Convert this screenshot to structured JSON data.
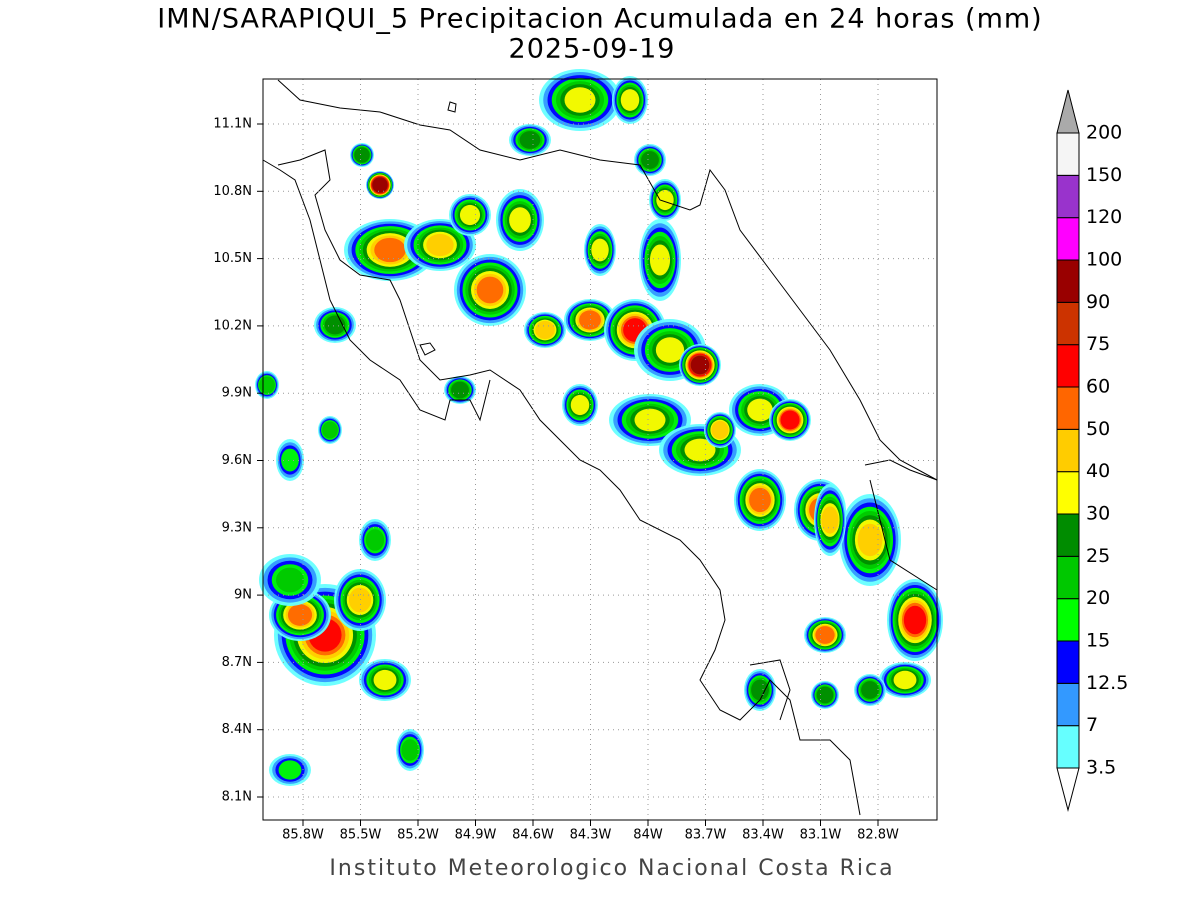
{
  "header": {
    "title": "IMN/SARAPIQUI_5 Precipitacion Acumulada en 24 horas (mm)",
    "date": "2025-09-19"
  },
  "map": {
    "lat_ticks": [
      "11.1N",
      "10.8N",
      "10.5N",
      "10.2N",
      "9.9N",
      "9.6N",
      "9.3N",
      "9N",
      "8.7N",
      "8.4N",
      "8.1N"
    ],
    "lon_ticks": [
      "85.8W",
      "85.5W",
      "85.2W",
      "84.9W",
      "84.6W",
      "84.3W",
      "84W",
      "83.7W",
      "83.4W",
      "83.1W",
      "82.8W"
    ]
  },
  "colorbar": {
    "labels": [
      "3.5",
      "7",
      "12.5",
      "15",
      "20",
      "25",
      "30",
      "40",
      "50",
      "60",
      "75",
      "90",
      "100",
      "120",
      "150",
      "200"
    ],
    "colors": [
      "#ffffff",
      "#66ffff",
      "#3399ff",
      "#0000ff",
      "#00ff00",
      "#00c800",
      "#008c00",
      "#ffff00",
      "#ffcc00",
      "#ff6600",
      "#ff0000",
      "#cc3300",
      "#990000",
      "#ff00ff",
      "#9933cc",
      "#f5f5f5",
      "#aaaaaa"
    ]
  },
  "footer": "Instituto Meteorologico Nacional Costa Rica"
}
